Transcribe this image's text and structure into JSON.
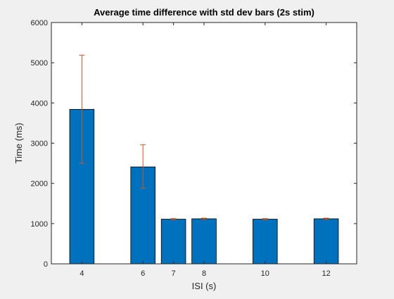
{
  "chart_data": {
    "type": "bar",
    "title": "Average time difference with std dev bars (2s stim)",
    "xlabel": "ISI (s)",
    "ylabel": "Time (ms)",
    "x": [
      4,
      6,
      7,
      8,
      10,
      12
    ],
    "x_tick_labels": [
      "4",
      "6",
      "7",
      "8",
      "10",
      "12"
    ],
    "values": [
      3840,
      2410,
      1110,
      1120,
      1110,
      1120
    ],
    "error_lower": [
      2500,
      1880,
      1100,
      1105,
      1100,
      1105
    ],
    "error_upper": [
      5190,
      2960,
      1125,
      1135,
      1125,
      1135
    ],
    "xlim": [
      3,
      13
    ],
    "ylim": [
      0,
      6000
    ],
    "y_ticks": [
      0,
      1000,
      2000,
      3000,
      4000,
      5000,
      6000
    ],
    "y_tick_labels": [
      "0",
      "1000",
      "2000",
      "3000",
      "4000",
      "5000",
      "6000"
    ],
    "grid": false,
    "bar_color": "#0072BD",
    "error_bar_color": "#D95319",
    "axes_background": "#ffffff",
    "figure_background": "#f0f0f0"
  }
}
